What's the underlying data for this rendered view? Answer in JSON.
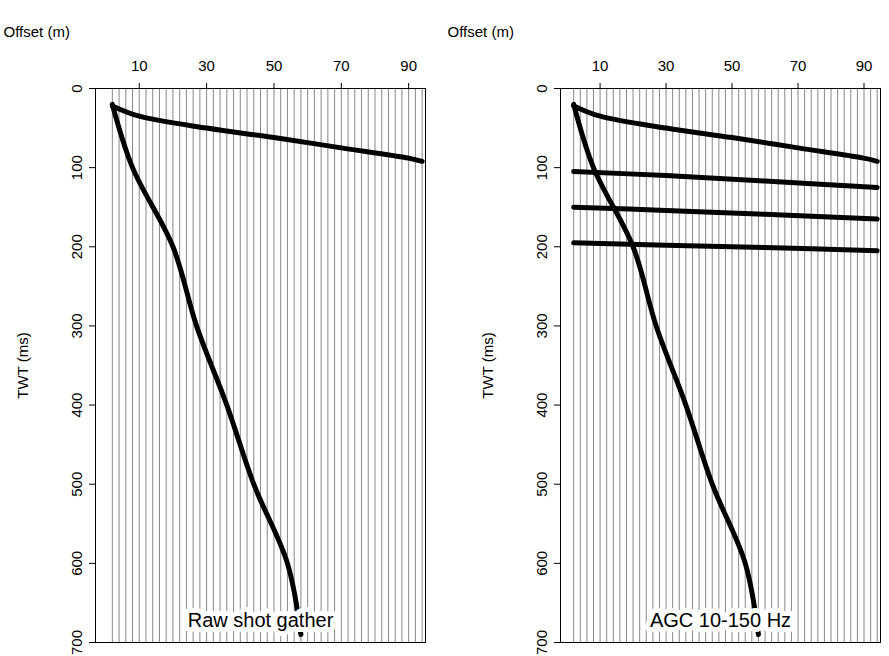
{
  "chart_data": [
    {
      "type": "seismic_gather",
      "title": "Raw shot gather",
      "x_label": "Offset (m)",
      "y_label": "TWT (ms)",
      "xlim": [
        -3,
        95
      ],
      "xticks": [
        10,
        30,
        50,
        70,
        90
      ],
      "ylim": [
        0,
        700
      ],
      "yticks": [
        0,
        100,
        200,
        300,
        400,
        500,
        600,
        700
      ],
      "trace_offsets": [
        2,
        4,
        6,
        8,
        10,
        12,
        14,
        16,
        18,
        20,
        22,
        24,
        26,
        28,
        30,
        32,
        34,
        36,
        38,
        40,
        42,
        44,
        46,
        48,
        50,
        52,
        54,
        56,
        58,
        60,
        62,
        64,
        66,
        68,
        70,
        72,
        74,
        76,
        78,
        80,
        82,
        84,
        86,
        88,
        90,
        92,
        94
      ],
      "series": [
        {
          "color": "#000000",
          "x": [
            2,
            10,
            30,
            50,
            70,
            90,
            94
          ],
          "values": [
            22,
            35,
            50,
            62,
            75,
            88,
            92
          ]
        },
        {
          "color": "#000000",
          "x": [
            2,
            8,
            20,
            27,
            36,
            44,
            54,
            58
          ],
          "values": [
            20,
            100,
            200,
            300,
            400,
            500,
            600,
            690
          ]
        }
      ]
    },
    {
      "type": "seismic_gather",
      "title": "AGC 10-150 Hz",
      "x_label": "Offset (m)",
      "y_label": "TWT (ms)",
      "xlim": [
        -2,
        95
      ],
      "xticks": [
        10,
        30,
        50,
        70,
        90
      ],
      "ylim": [
        0,
        700
      ],
      "yticks": [
        0,
        100,
        200,
        300,
        400,
        500,
        600,
        700
      ],
      "trace_offsets": [
        2,
        4,
        6,
        8,
        10,
        12,
        14,
        16,
        18,
        20,
        22,
        24,
        26,
        28,
        30,
        32,
        34,
        36,
        38,
        40,
        42,
        44,
        46,
        48,
        50,
        52,
        54,
        56,
        58,
        60,
        62,
        64,
        66,
        68,
        70,
        72,
        74,
        76,
        78,
        80,
        82,
        84,
        86,
        88,
        90,
        92,
        94
      ],
      "series": [
        {
          "color": "#000000",
          "x": [
            2,
            10,
            30,
            50,
            70,
            90,
            94
          ],
          "values": [
            22,
            35,
            50,
            62,
            75,
            88,
            92
          ]
        },
        {
          "color": "#000000",
          "x": [
            2,
            30,
            60,
            94
          ],
          "values": [
            105,
            110,
            117,
            125
          ]
        },
        {
          "color": "#000000",
          "x": [
            2,
            30,
            60,
            94
          ],
          "values": [
            150,
            154,
            159,
            165
          ]
        },
        {
          "color": "#000000",
          "x": [
            2,
            30,
            60,
            94
          ],
          "values": [
            195,
            198,
            201,
            205
          ]
        },
        {
          "color": "#000000",
          "x": [
            2,
            8,
            20,
            27,
            36,
            44,
            54,
            58
          ],
          "values": [
            20,
            100,
            200,
            300,
            400,
            500,
            600,
            690
          ]
        }
      ]
    }
  ]
}
